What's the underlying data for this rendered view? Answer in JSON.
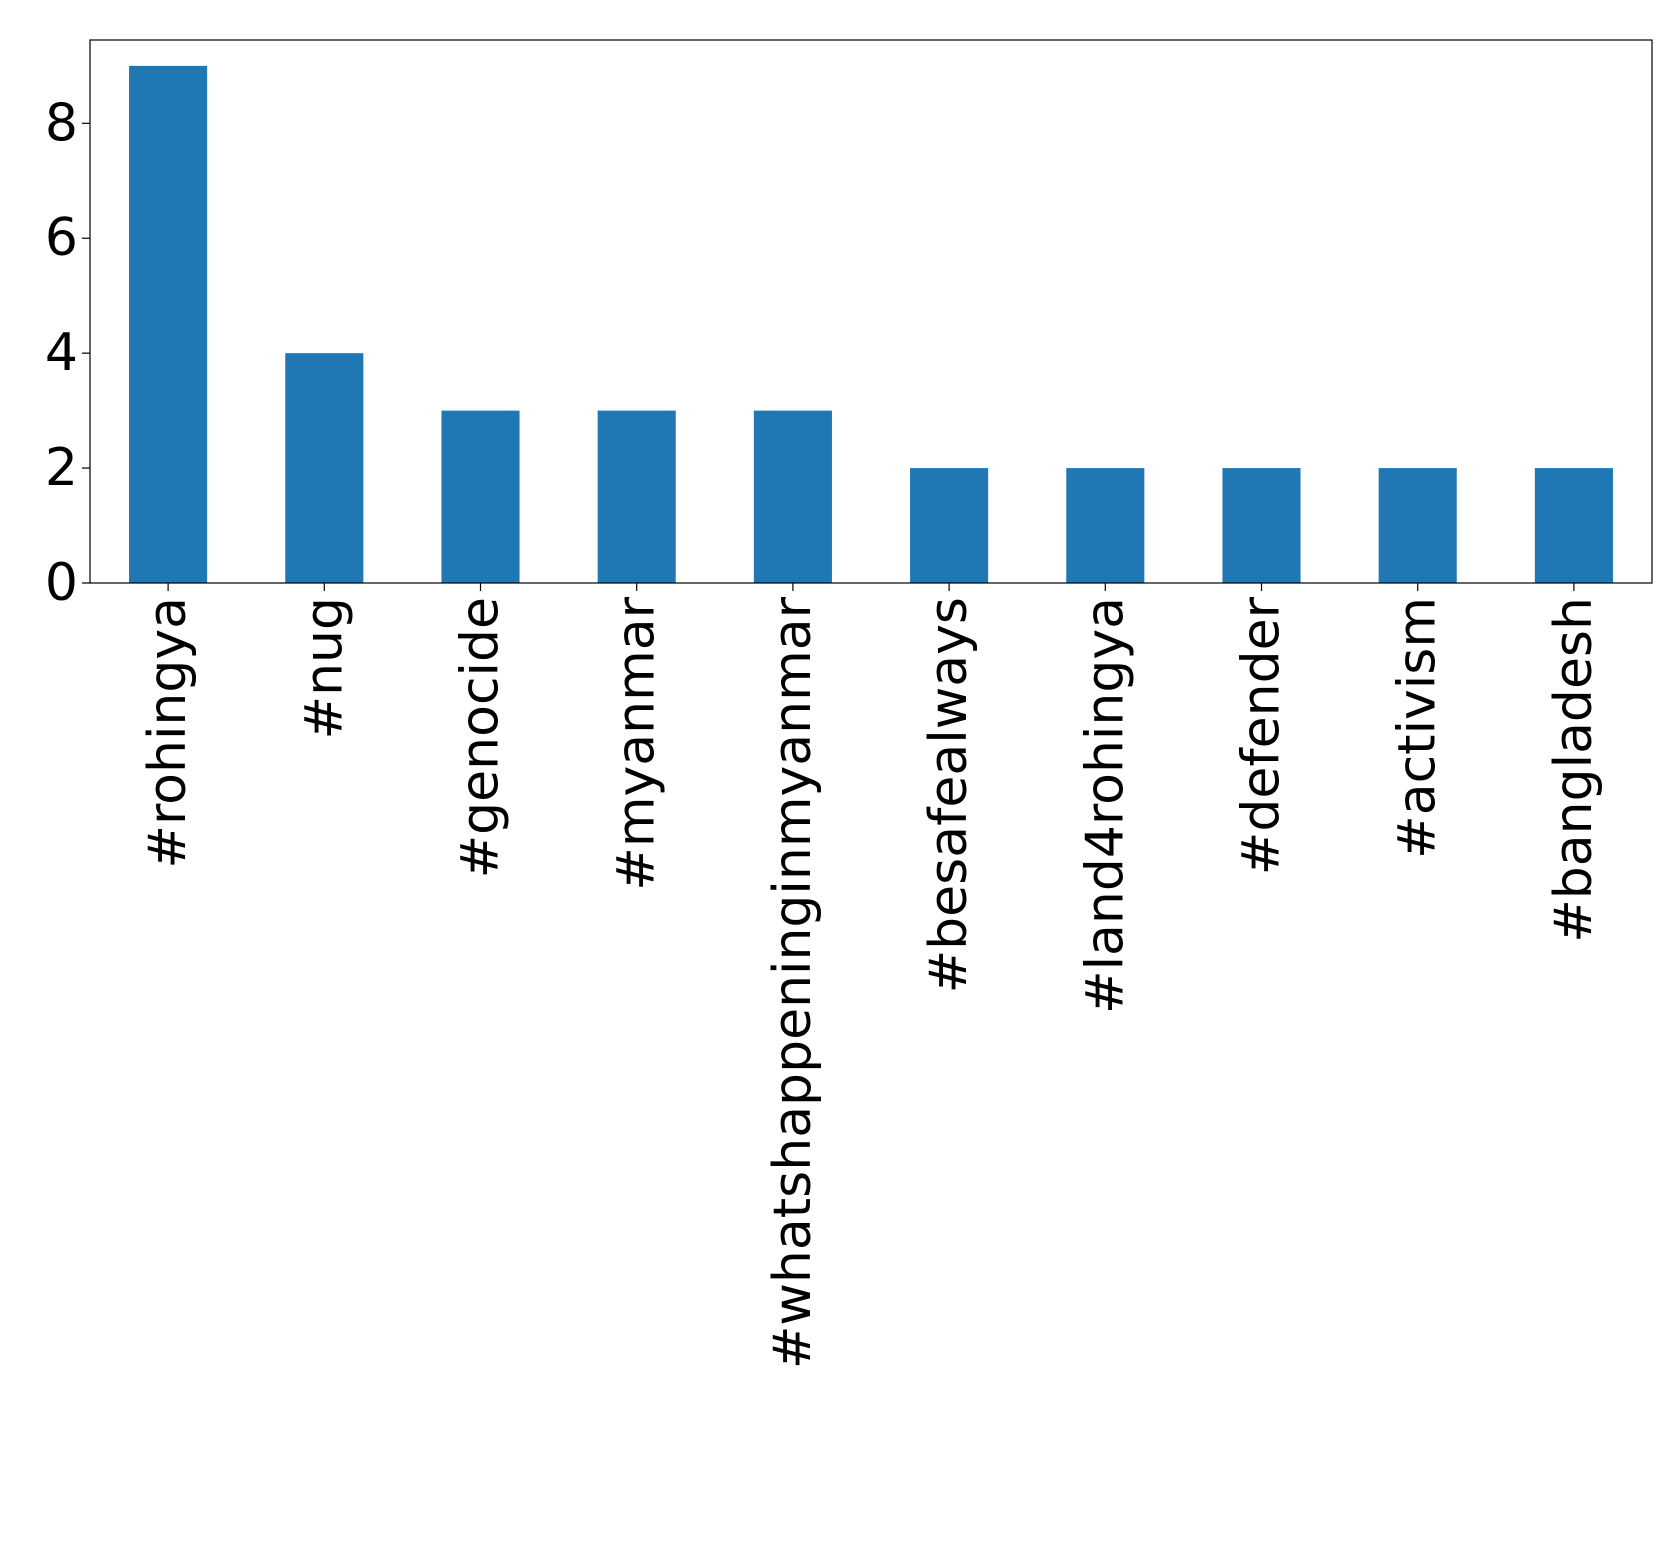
{
  "chart_data": {
    "type": "bar",
    "title": "",
    "xlabel": "",
    "ylabel": "",
    "categories": [
      "#rohingya",
      "#nug",
      "#genocide",
      "#myanmar",
      "#whatshappeninginmyanmar",
      "#besafealways",
      "#land4rohingya",
      "#defender",
      "#activism",
      "#bangladesh"
    ],
    "values": [
      9,
      4,
      3,
      3,
      3,
      2,
      2,
      2,
      2,
      2
    ],
    "ylim": [
      0,
      9.45
    ],
    "yticks": [
      0,
      2,
      4,
      6,
      8
    ],
    "grid": false,
    "bar_color": "#1f77b4"
  }
}
